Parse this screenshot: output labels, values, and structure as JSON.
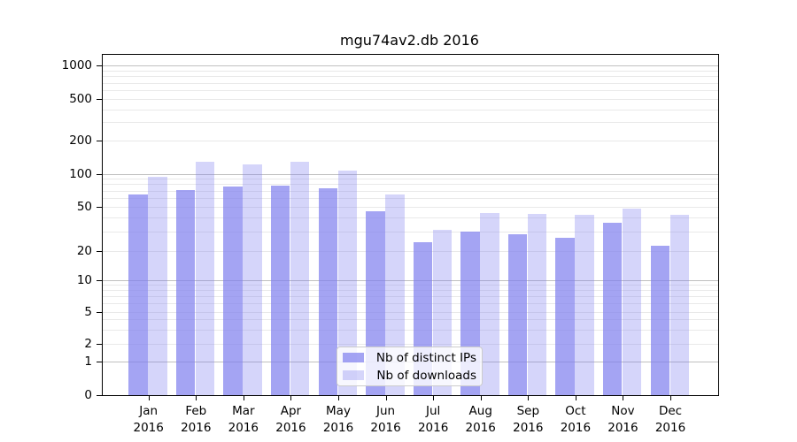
{
  "chart_data": {
    "type": "bar",
    "title": "mgu74av2.db 2016",
    "categories": [
      "Jan",
      "Feb",
      "Mar",
      "Apr",
      "May",
      "Jun",
      "Jul",
      "Aug",
      "Sep",
      "Oct",
      "Nov",
      "Dec"
    ],
    "year_label": "2016",
    "series": [
      {
        "name": "Nb of distinct IPs",
        "color": "rgba(125,125,238,0.70)",
        "values": [
          64,
          71,
          77,
          78,
          74,
          45,
          24,
          30,
          28,
          26,
          36,
          22
        ]
      },
      {
        "name": "Nb of downloads",
        "color": "rgba(125,125,238,0.32)",
        "values": [
          94,
          129,
          122,
          128,
          106,
          64,
          31,
          44,
          43,
          42,
          48,
          42
        ]
      }
    ],
    "y_axis": {
      "ticks": [
        0,
        1,
        2,
        5,
        10,
        20,
        50,
        100,
        200,
        500,
        1000
      ],
      "scale": "symlog",
      "major_gridlines": [
        1,
        10,
        100,
        1000
      ],
      "minor_gridlines": [
        2,
        3,
        4,
        5,
        6,
        7,
        8,
        9,
        20,
        30,
        40,
        50,
        60,
        70,
        80,
        90,
        200,
        300,
        400,
        500,
        600,
        700,
        800,
        900
      ]
    },
    "grid": true,
    "legend_position": "lower center inside axes",
    "colors": {
      "bar_base": "#7d7dee",
      "major_grid": "#c0c0c0",
      "minor_grid": "#e9e9e9",
      "axis": "#000000",
      "background": "#ffffff"
    }
  }
}
